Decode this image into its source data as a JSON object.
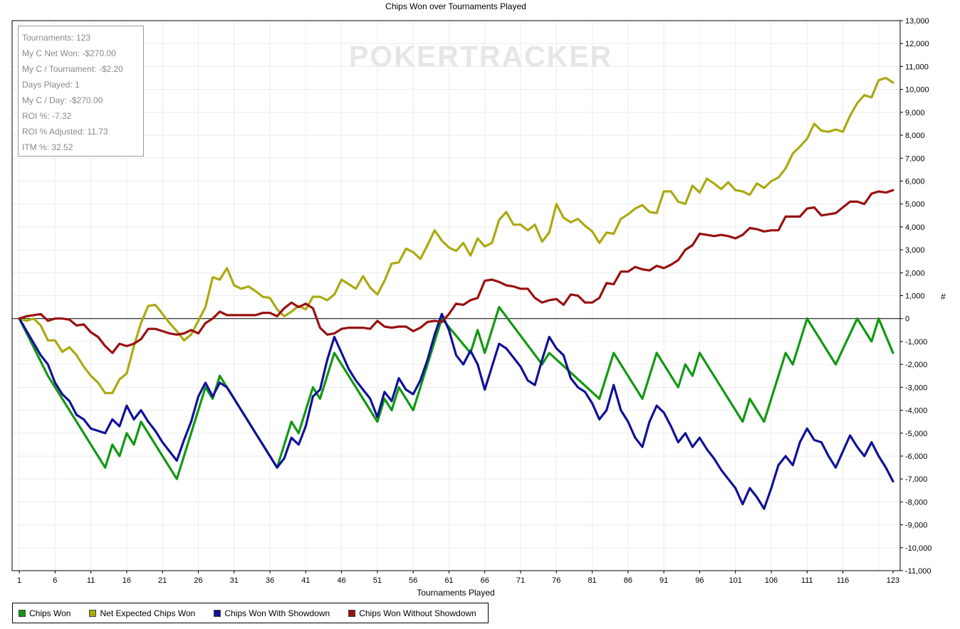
{
  "chart_data": {
    "type": "line",
    "title": "Chips Won over Tournaments Played",
    "xlabel": "Tournaments Played",
    "ylabel": "#",
    "xlim": [
      0,
      124
    ],
    "ylim": [
      -11000,
      13000
    ],
    "xticks": [
      1,
      6,
      11,
      16,
      21,
      26,
      31,
      36,
      41,
      46,
      51,
      56,
      61,
      66,
      71,
      76,
      81,
      86,
      91,
      96,
      101,
      106,
      111,
      116,
      123
    ],
    "yticks": [
      -11000,
      -10000,
      -9000,
      -8000,
      -7000,
      -6000,
      -5000,
      -4000,
      -3000,
      -2000,
      -1000,
      0,
      1000,
      2000,
      3000,
      4000,
      5000,
      6000,
      7000,
      8000,
      9000,
      10000,
      11000,
      12000,
      13000
    ],
    "ytick_labels": [
      "-11,000",
      "-10,000",
      "-9,000",
      "-8,000",
      "-7,000",
      "-6,000",
      "-5,000",
      "-4,000",
      "-3,000",
      "-2,000",
      "-1,000",
      "0",
      "1,000",
      "2,000",
      "3,000",
      "4,000",
      "5,000",
      "6,000",
      "7,000",
      "8,000",
      "9,000",
      "10,000",
      "11,000",
      "12,000",
      "13,000"
    ],
    "grid": true,
    "legend_position": "bottom-left",
    "series": [
      {
        "name": "Chips Won",
        "color": "#119911",
        "x": [
          1,
          5,
          13,
          14,
          15,
          16,
          17,
          18,
          23,
          27,
          28,
          29,
          37,
          39,
          40,
          42,
          43,
          45,
          51,
          52,
          53,
          54,
          56,
          60,
          64,
          65,
          66,
          68,
          74,
          75,
          82,
          84,
          88,
          90,
          93,
          94,
          95,
          96,
          102,
          103,
          105,
          108,
          109,
          111,
          115,
          118,
          120,
          121,
          123
        ],
        "y": [
          0,
          -2500,
          -6500,
          -5500,
          -6000,
          -5000,
          -5500,
          -4500,
          -7000,
          -3000,
          -3500,
          -2500,
          -6500,
          -4500,
          -5000,
          -3000,
          -3500,
          -1500,
          -4500,
          -3500,
          -4000,
          -3000,
          -4000,
          0,
          -1500,
          -500,
          -1500,
          500,
          -2000,
          -1500,
          -3500,
          -1500,
          -3500,
          -1500,
          -3000,
          -2000,
          -2500,
          -1500,
          -4500,
          -3500,
          -4500,
          -1500,
          -2000,
          0,
          -2000,
          0,
          -1000,
          0,
          -1500
        ]
      },
      {
        "name": "Net Expected Chips Won",
        "color": "#aaaa11",
        "x": [
          1,
          2,
          3,
          4,
          5,
          6,
          7,
          8,
          9,
          10,
          11,
          12,
          13,
          14,
          15,
          16,
          17,
          18,
          19,
          20,
          21,
          22,
          23,
          24,
          25,
          26,
          27,
          28,
          29,
          30,
          31,
          32,
          33,
          34,
          35,
          36,
          37,
          38,
          39,
          40,
          41,
          42,
          43,
          44,
          45,
          46,
          47,
          48,
          49,
          50,
          51,
          52,
          53,
          54,
          55,
          56,
          57,
          58,
          59,
          60,
          61,
          62,
          63,
          64,
          65,
          66,
          67,
          68,
          69,
          70,
          71,
          72,
          73,
          74,
          75,
          76,
          77,
          78,
          79,
          80,
          81,
          82,
          83,
          84,
          85,
          86,
          87,
          88,
          89,
          90,
          91,
          92,
          93,
          94,
          95,
          96,
          97,
          98,
          99,
          100,
          101,
          102,
          103,
          104,
          105,
          106,
          107,
          108,
          109,
          110,
          111,
          112,
          113,
          114,
          115,
          116,
          117,
          118,
          119,
          120,
          121,
          122,
          123
        ],
        "y": [
          0,
          -100,
          0,
          -300,
          -950,
          -950,
          -1450,
          -1250,
          -1600,
          -2100,
          -2500,
          -2800,
          -3250,
          -3250,
          -2650,
          -2400,
          -1200,
          -200,
          550,
          600,
          200,
          -200,
          -550,
          -950,
          -700,
          -100,
          500,
          1800,
          1700,
          2200,
          1450,
          1300,
          1400,
          1200,
          950,
          900,
          400,
          100,
          300,
          550,
          400,
          950,
          950,
          800,
          1050,
          1700,
          1500,
          1300,
          1850,
          1350,
          1050,
          1650,
          2400,
          2450,
          3050,
          2900,
          2600,
          3200,
          3850,
          3400,
          3100,
          2950,
          3300,
          2750,
          3500,
          3150,
          3300,
          4300,
          4650,
          4100,
          4100,
          3850,
          4100,
          3350,
          3750,
          5000,
          4400,
          4200,
          4350,
          4050,
          3800,
          3300,
          3750,
          3700,
          4350,
          4550,
          4800,
          4950,
          4650,
          4600,
          5550,
          5550,
          5100,
          5000,
          5800,
          5500,
          6100,
          5900,
          5650,
          5950,
          5600,
          5550,
          5400,
          5900,
          5700,
          6000,
          6150,
          6550,
          7200,
          7500,
          7850,
          8500,
          8200,
          8150,
          8250,
          8150,
          8850,
          9400,
          9750,
          9650,
          10400,
          10500,
          10300
        ]
      },
      {
        "name": "Chips Won With Showdown",
        "color": "#111199",
        "x": [
          1,
          4,
          5,
          6,
          7,
          8,
          9,
          10,
          11,
          12,
          13,
          14,
          15,
          16,
          17,
          18,
          19,
          20,
          21,
          22,
          23,
          24,
          25,
          26,
          27,
          28,
          29,
          30,
          31,
          32,
          33,
          34,
          35,
          36,
          37,
          38,
          39,
          40,
          41,
          42,
          43,
          44,
          45,
          46,
          47,
          48,
          49,
          50,
          51,
          52,
          53,
          54,
          55,
          56,
          57,
          58,
          59,
          60,
          61,
          62,
          63,
          64,
          65,
          66,
          67,
          68,
          69,
          70,
          71,
          72,
          73,
          74,
          75,
          76,
          77,
          78,
          79,
          80,
          81,
          82,
          83,
          84,
          85,
          86,
          87,
          88,
          89,
          90,
          91,
          92,
          93,
          94,
          95,
          96,
          97,
          98,
          99,
          100,
          101,
          102,
          103,
          104,
          105,
          106,
          107,
          108,
          109,
          110,
          111,
          112,
          113,
          114,
          115,
          116,
          117,
          118,
          119,
          120,
          121,
          122,
          123
        ],
        "y": [
          0,
          -1600,
          -2000,
          -2800,
          -3300,
          -3600,
          -4200,
          -4400,
          -4800,
          -4900,
          -5000,
          -4400,
          -4700,
          -3800,
          -4400,
          -4000,
          -4500,
          -4900,
          -5400,
          -5800,
          -6200,
          -5300,
          -4500,
          -3400,
          -2800,
          -3400,
          -2800,
          -3000,
          -3500,
          -4000,
          -4500,
          -5000,
          -5500,
          -6000,
          -6500,
          -6100,
          -5200,
          -5500,
          -4700,
          -3400,
          -3100,
          -1800,
          -800,
          -1500,
          -2200,
          -2700,
          -3100,
          -3500,
          -4300,
          -3200,
          -3600,
          -2600,
          -3100,
          -3300,
          -2700,
          -1800,
          -700,
          200,
          -500,
          -1600,
          -2000,
          -1400,
          -2000,
          -3100,
          -2100,
          -1100,
          -1300,
          -1700,
          -2100,
          -2700,
          -2900,
          -1800,
          -800,
          -1300,
          -1600,
          -2600,
          -3000,
          -3200,
          -3700,
          -4400,
          -4000,
          -2900,
          -4000,
          -4500,
          -5200,
          -5600,
          -4500,
          -3800,
          -4100,
          -4700,
          -5400,
          -5000,
          -5600,
          -5200,
          -5700,
          -6100,
          -6600,
          -7000,
          -7400,
          -8100,
          -7400,
          -7800,
          -8300,
          -7400,
          -6400,
          -6000,
          -6400,
          -5400,
          -4800,
          -5300,
          -5400,
          -6000,
          -6500,
          -5800,
          -5100,
          -5600,
          -6000,
          -5400,
          -6000,
          -6500,
          -7100
        ]
      },
      {
        "name": "Chips Won Without Showdown",
        "color": "#991111",
        "x": [
          1,
          2,
          3,
          4,
          5,
          6,
          7,
          8,
          9,
          10,
          11,
          12,
          13,
          14,
          15,
          16,
          17,
          18,
          19,
          20,
          21,
          22,
          23,
          24,
          25,
          26,
          27,
          28,
          29,
          30,
          31,
          32,
          33,
          34,
          35,
          36,
          37,
          38,
          39,
          40,
          41,
          42,
          43,
          44,
          45,
          46,
          47,
          48,
          49,
          50,
          51,
          52,
          53,
          54,
          55,
          56,
          57,
          58,
          59,
          60,
          61,
          62,
          63,
          64,
          65,
          66,
          67,
          68,
          69,
          70,
          71,
          72,
          73,
          74,
          75,
          76,
          77,
          78,
          79,
          80,
          81,
          82,
          83,
          84,
          85,
          86,
          87,
          88,
          89,
          90,
          91,
          92,
          93,
          94,
          95,
          96,
          97,
          98,
          99,
          100,
          101,
          102,
          103,
          104,
          105,
          106,
          107,
          108,
          109,
          110,
          111,
          112,
          113,
          114,
          115,
          116,
          117,
          118,
          119,
          120,
          121,
          122,
          123
        ],
        "y": [
          0,
          100,
          150,
          200,
          -100,
          0,
          0,
          -50,
          -300,
          -250,
          -600,
          -800,
          -1200,
          -1500,
          -1100,
          -1200,
          -1100,
          -900,
          -450,
          -450,
          -550,
          -650,
          -700,
          -650,
          -500,
          -650,
          -200,
          0,
          300,
          150,
          150,
          150,
          150,
          150,
          250,
          250,
          100,
          450,
          700,
          500,
          650,
          450,
          -400,
          -700,
          -650,
          -450,
          -400,
          -400,
          -400,
          -450,
          -100,
          -350,
          -400,
          -350,
          -350,
          -550,
          -400,
          -150,
          -100,
          -150,
          200,
          650,
          600,
          800,
          900,
          1650,
          1700,
          1600,
          1450,
          1400,
          1300,
          1300,
          900,
          700,
          800,
          850,
          600,
          1050,
          1000,
          700,
          700,
          900,
          1550,
          1500,
          2050,
          2050,
          2250,
          2150,
          2100,
          2300,
          2200,
          2350,
          2550,
          3000,
          3200,
          3700,
          3650,
          3600,
          3650,
          3600,
          3500,
          3650,
          3950,
          3900,
          3800,
          3850,
          3850,
          4450,
          4450,
          4450,
          4800,
          4850,
          4500,
          4550,
          4600,
          4850,
          5100,
          5100,
          5000,
          5450,
          5550,
          5500,
          5600
        ]
      }
    ]
  },
  "stats": [
    "Tournaments: 123",
    "My C Net Won: -$270.00",
    "My C / Tournament: -$2.20",
    "Days Played: 1",
    "My C / Day: -$270.00",
    "ROI %: -7.32",
    "ROI % Adjusted: 11.73",
    "ITM %: 32.52"
  ],
  "watermark": "POKERTRACKER",
  "legend_items": [
    "Chips Won",
    "Net Expected Chips Won",
    "Chips Won With Showdown",
    "Chips Won Without Showdown"
  ]
}
